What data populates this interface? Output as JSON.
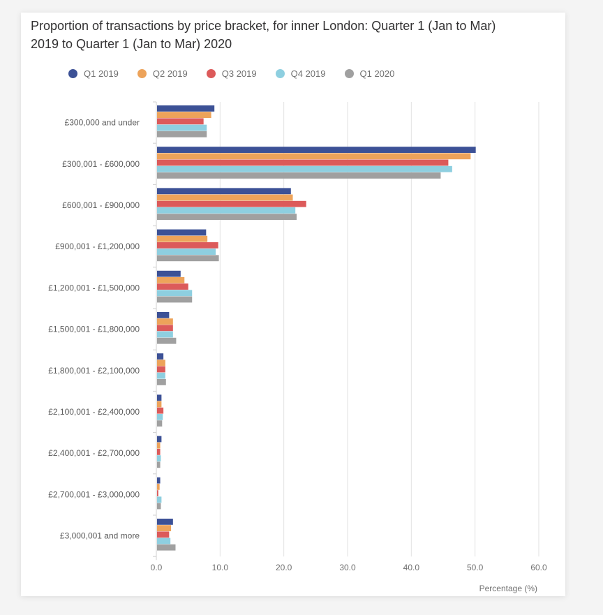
{
  "chart_data": {
    "type": "bar",
    "orientation": "horizontal",
    "title": "Proportion of transactions by price bracket, for inner London: Quarter 1 (Jan to Mar) 2019 to Quarter 1 (Jan to Mar) 2020",
    "xlabel": "Percentage (%)",
    "ylabel": "",
    "xlim": [
      0,
      60
    ],
    "xticks": [
      "0.0",
      "10.0",
      "20.0",
      "30.0",
      "40.0",
      "50.0",
      "60.0"
    ],
    "grid": true,
    "legend_position": "top",
    "categories": [
      "£300,000 and under",
      "£300,001 - £600,000",
      "£600,001 - £900,000",
      "£900,001 - £1,200,000",
      "£1,200,001 - £1,500,000",
      "£1,500,001 - £1,800,000",
      "£1,800,001 - £2,100,000",
      "£2,100,001 - £2,400,000",
      "£2,400,001 - £2,700,000",
      "£2,700,001 - £3,000,000",
      "£3,000,001 and more"
    ],
    "series": [
      {
        "name": "Q1 2019",
        "color": "#3c5196",
        "values": [
          9.0,
          50.0,
          21.0,
          7.7,
          3.7,
          1.9,
          1.0,
          0.7,
          0.7,
          0.5,
          2.5
        ]
      },
      {
        "name": "Q2 2019",
        "color": "#eda35a",
        "values": [
          8.5,
          49.2,
          21.3,
          7.9,
          4.3,
          2.5,
          1.3,
          0.7,
          0.5,
          0.4,
          2.2
        ]
      },
      {
        "name": "Q3 2019",
        "color": "#dc5a5a",
        "values": [
          7.3,
          45.7,
          23.4,
          9.6,
          4.9,
          2.5,
          1.3,
          1.0,
          0.5,
          0.2,
          1.9
        ]
      },
      {
        "name": "Q4 2019",
        "color": "#8ecfe0",
        "values": [
          7.8,
          46.3,
          21.7,
          9.2,
          5.5,
          2.5,
          1.3,
          0.9,
          0.6,
          0.7,
          2.1
        ]
      },
      {
        "name": "Q1 2020",
        "color": "#a0a0a0",
        "values": [
          7.8,
          44.5,
          21.9,
          9.7,
          5.5,
          3.0,
          1.4,
          0.8,
          0.5,
          0.6,
          2.9
        ]
      }
    ]
  }
}
